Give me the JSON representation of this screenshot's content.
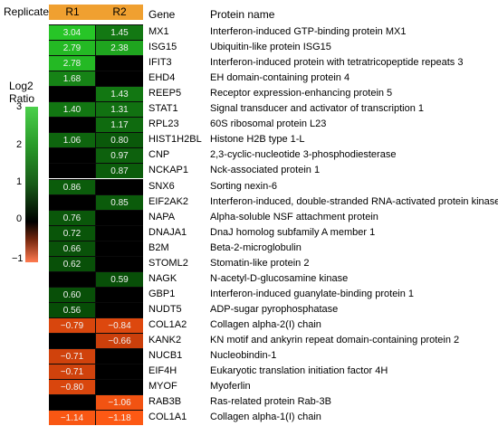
{
  "chart_data": {
    "type": "heatmap",
    "title": "",
    "header_label": "Replicate",
    "columns": [
      "R1",
      "R2"
    ],
    "gene_header": "Gene",
    "protein_header": "Protein name",
    "scale": {
      "label_line1": "Log2",
      "label_line2": "Ratio",
      "ticks": [
        "3",
        "2",
        "1",
        "0",
        "−1"
      ],
      "min": -1.2,
      "max": 3.1
    },
    "rows": [
      {
        "gene": "MX1",
        "protein": "Interferon-induced GTP-binding protein MX1",
        "r1": 3.04,
        "r2": 1.45,
        "r1_label": "3.04",
        "r2_label": "1.45"
      },
      {
        "gene": "ISG15",
        "protein": "Ubiquitin-like protein ISG15",
        "r1": 2.79,
        "r2": 2.38,
        "r1_label": "2.79",
        "r2_label": "2.38"
      },
      {
        "gene": "IFIT3",
        "protein": "Interferon-induced protein with tetratricopeptide repeats 3",
        "r1": 2.78,
        "r2": null,
        "r1_label": "2.78",
        "r2_label": ""
      },
      {
        "gene": "EHD4",
        "protein": "EH domain-containing protein 4",
        "r1": 1.68,
        "r2": null,
        "r1_label": "1.68",
        "r2_label": ""
      },
      {
        "gene": "REEP5",
        "protein": "Receptor expression-enhancing protein 5",
        "r1": null,
        "r2": 1.43,
        "r1_label": "",
        "r2_label": "1.43"
      },
      {
        "gene": "STAT1",
        "protein": "Signal transducer and activator of transcription 1",
        "r1": 1.4,
        "r2": 1.31,
        "r1_label": "1.40",
        "r2_label": "1.31"
      },
      {
        "gene": "RPL23",
        "protein": "60S ribosomal protein L23",
        "r1": null,
        "r2": 1.17,
        "r1_label": "",
        "r2_label": "1.17"
      },
      {
        "gene": "HIST1H2BL",
        "protein": "Histone H2B type 1-L",
        "r1": 1.06,
        "r2": 0.8,
        "r1_label": "1.06",
        "r2_label": "0.80"
      },
      {
        "gene": "CNP",
        "protein": "2,3-cyclic-nucleotide 3-phosphodiesterase",
        "r1": null,
        "r2": 0.97,
        "r1_label": "",
        "r2_label": "0.97"
      },
      {
        "gene": "NCKAP1",
        "protein": "Nck-associated protein 1",
        "r1": null,
        "r2": 0.87,
        "r1_label": "",
        "r2_label": "0.87"
      },
      {
        "gene": "SNX6",
        "protein": "Sorting nexin-6",
        "r1": 0.86,
        "r2": null,
        "r1_label": "0.86",
        "r2_label": ""
      },
      {
        "gene": "EIF2AK2",
        "protein": "Interferon-induced, double-stranded RNA-activated protein kinase",
        "r1": null,
        "r2": 0.85,
        "r1_label": "",
        "r2_label": "0.85"
      },
      {
        "gene": "NAPA",
        "protein": "Alpha-soluble NSF attachment protein",
        "r1": 0.76,
        "r2": null,
        "r1_label": "0.76",
        "r2_label": ""
      },
      {
        "gene": "DNAJA1",
        "protein": "DnaJ homolog subfamily A member 1",
        "r1": 0.72,
        "r2": null,
        "r1_label": "0.72",
        "r2_label": ""
      },
      {
        "gene": "B2M",
        "protein": "Beta-2-microglobulin",
        "r1": 0.66,
        "r2": null,
        "r1_label": "0.66",
        "r2_label": ""
      },
      {
        "gene": "STOML2",
        "protein": "Stomatin-like protein 2",
        "r1": 0.62,
        "r2": null,
        "r1_label": "0.62",
        "r2_label": ""
      },
      {
        "gene": "NAGK",
        "protein": "N-acetyl-D-glucosamine kinase",
        "r1": null,
        "r2": 0.59,
        "r1_label": "",
        "r2_label": "0.59"
      },
      {
        "gene": "GBP1",
        "protein": "Interferon-induced guanylate-binding protein 1",
        "r1": 0.6,
        "r2": null,
        "r1_label": "0.60",
        "r2_label": ""
      },
      {
        "gene": "NUDT5",
        "protein": "ADP-sugar pyrophosphatase",
        "r1": 0.56,
        "r2": null,
        "r1_label": "0.56",
        "r2_label": ""
      },
      {
        "gene": "COL1A2",
        "protein": "Collagen alpha-2(I) chain",
        "r1": -0.79,
        "r2": -0.84,
        "r1_label": "−0.79",
        "r2_label": "−0.84"
      },
      {
        "gene": "KANK2",
        "protein": "KN motif and ankyrin repeat domain-containing protein 2",
        "r1": null,
        "r2": -0.66,
        "r1_label": "",
        "r2_label": "−0.66"
      },
      {
        "gene": "NUCB1",
        "protein": "Nucleobindin-1",
        "r1": -0.71,
        "r2": null,
        "r1_label": "−0.71",
        "r2_label": ""
      },
      {
        "gene": "EIF4H",
        "protein": "Eukaryotic translation initiation factor 4H",
        "r1": -0.71,
        "r2": null,
        "r1_label": "−0.71",
        "r2_label": ""
      },
      {
        "gene": "MYOF",
        "protein": "Myoferlin",
        "r1": -0.8,
        "r2": null,
        "r1_label": "−0.80",
        "r2_label": ""
      },
      {
        "gene": "RAB3B",
        "protein": "Ras-related protein Rab-3B",
        "r1": null,
        "r2": -1.06,
        "r1_label": "",
        "r2_label": "−1.06"
      },
      {
        "gene": "COL1A1",
        "protein": "Collagen alpha-1(I) chain",
        "r1": -1.14,
        "r2": -1.18,
        "r1_label": "−1.14",
        "r2_label": "−1.18"
      }
    ]
  }
}
